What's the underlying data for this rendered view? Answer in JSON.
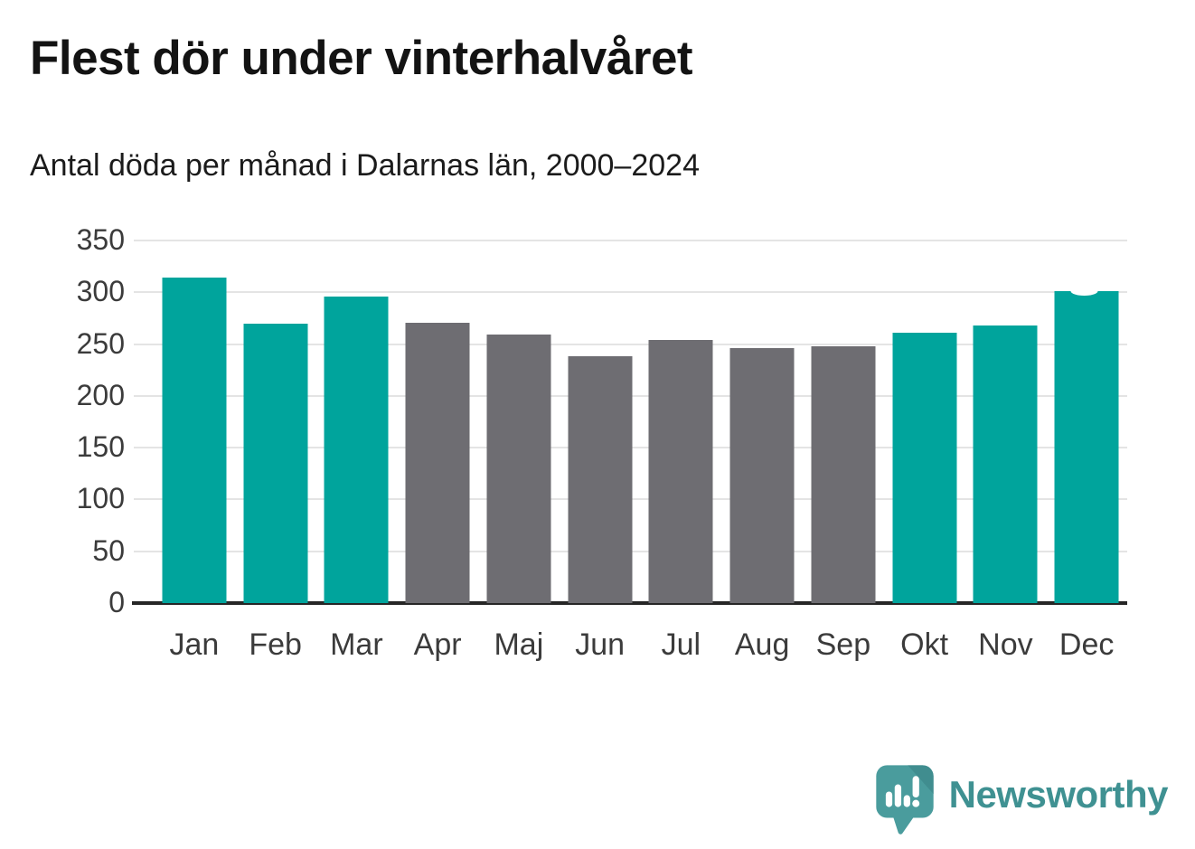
{
  "title": "Flest dör under vinterhalvåret",
  "subtitle": "Antal döda per månad i Dalarnas län, 2000–2024",
  "chart_data": {
    "type": "bar",
    "categories": [
      "Jan",
      "Feb",
      "Mar",
      "Apr",
      "Maj",
      "Jun",
      "Jul",
      "Aug",
      "Sep",
      "Okt",
      "Nov",
      "Dec"
    ],
    "values": [
      314,
      270,
      296,
      271,
      259,
      238,
      254,
      246,
      248,
      261,
      268,
      301
    ],
    "bar_colors": [
      "teal",
      "teal",
      "teal",
      "gray",
      "gray",
      "gray",
      "gray",
      "gray",
      "gray",
      "teal",
      "teal",
      "teal"
    ],
    "y_ticks": [
      0,
      50,
      100,
      150,
      200,
      250,
      300,
      350
    ],
    "ylim": [
      0,
      350
    ],
    "xlabel": "",
    "ylabel": "",
    "grid": true,
    "legend": "none"
  },
  "colors": {
    "teal": "#00a49c",
    "gray": "#6e6d72",
    "gridline": "#e4e4e4",
    "axis": "#262626",
    "tick_label": "#3b3b3b",
    "title": "#131313",
    "logo_bubble": "#4a9c9d",
    "logo_bubble_fold": "#3e8b8d",
    "logo_text": "#3f9192"
  },
  "branding": {
    "logo_text": "Newsworthy",
    "logo_icon": "newsworthy-speech-bubble-barchart-icon"
  }
}
